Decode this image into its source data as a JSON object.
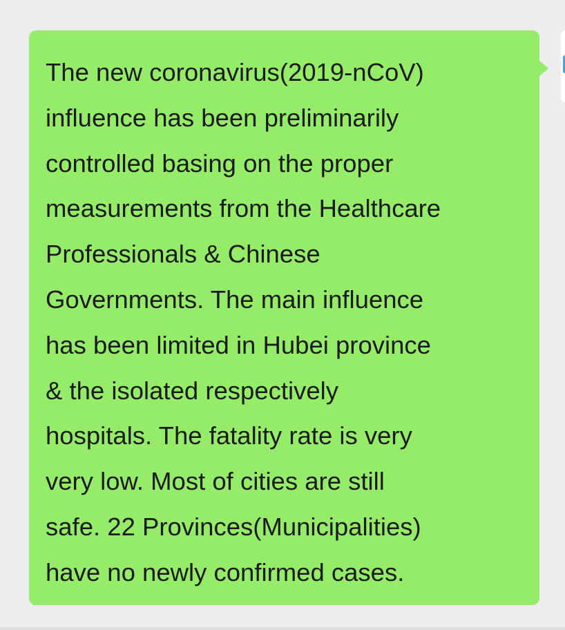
{
  "message": {
    "lines": [
      "The new coronavirus(2019-nCoV)",
      "influence has been preliminarily",
      "controlled basing on the proper",
      "measurements from the Healthcare",
      "Professionals & Chinese",
      "Governments. The main influence",
      "has been limited in Hubei province",
      "& the isolated respectively",
      "hospitals. The fatality rate is very",
      "very low. Most of cities are still",
      "safe. 22 Provinces(Municipalities)",
      "have no newly confirmed cases."
    ]
  },
  "colors": {
    "bubble": "#95ec69",
    "background": "#ededed",
    "text": "#1a1a1a"
  }
}
